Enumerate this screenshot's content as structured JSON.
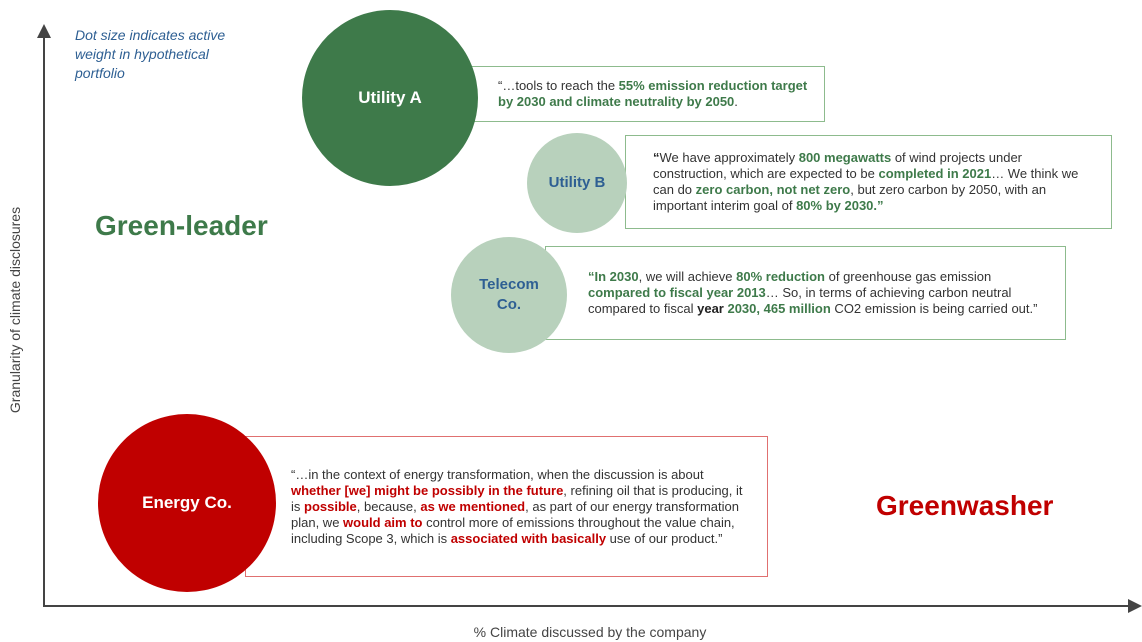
{
  "note": "Dot size indicates active weight in hypothetical portfolio",
  "y_axis_label": "Granularity of climate disclosures",
  "x_axis_label": "% Climate discussed by the company",
  "quadrants": [
    {
      "label": "Green-leader",
      "tone": "green"
    },
    {
      "label": "Greenwasher",
      "tone": "red"
    }
  ],
  "companies": [
    {
      "name": "Utility A",
      "tone": "dark-green",
      "quote": [
        {
          "text": "“…tools to reach the ",
          "style": "plain"
        },
        {
          "text": "55% emission reduction target by 2030 and climate neutrality by 2050",
          "style": "green"
        },
        {
          "text": ".",
          "style": "plain"
        }
      ]
    },
    {
      "name": "Utility B",
      "tone": "light-green",
      "quote": [
        {
          "text": "“",
          "style": "dark"
        },
        {
          "text": "We have approximately ",
          "style": "plain"
        },
        {
          "text": "800 megawatts",
          "style": "green"
        },
        {
          "text": " of wind projects under construction, which are expected to be ",
          "style": "plain"
        },
        {
          "text": "completed in 2021",
          "style": "green"
        },
        {
          "text": "… We think we can do ",
          "style": "plain"
        },
        {
          "text": "zero carbon, not net zero",
          "style": "green"
        },
        {
          "text": ", but zero carbon by 2050, with an important interim goal of ",
          "style": "plain"
        },
        {
          "text": "80% by 2030.”",
          "style": "green"
        }
      ]
    },
    {
      "name": "Telecom Co.",
      "tone": "light-green",
      "quote": [
        {
          "text": "“In 2030",
          "style": "green"
        },
        {
          "text": ", we will achieve ",
          "style": "plain"
        },
        {
          "text": "80% reduction",
          "style": "green"
        },
        {
          "text": " of greenhouse gas emission ",
          "style": "plain"
        },
        {
          "text": "compared to fiscal year 2013",
          "style": "green"
        },
        {
          "text": "… So, in terms of achieving carbon neutral compared to fiscal ",
          "style": "plain"
        },
        {
          "text": "year",
          "style": "dark"
        },
        {
          "text": " 2030, 465 million",
          "style": "green"
        },
        {
          "text": " CO2 emission is being carried out.”",
          "style": "plain"
        }
      ]
    },
    {
      "name": "Energy Co.",
      "tone": "red",
      "quote": [
        {
          "text": "“…in the context of energy transformation, when the discussion is about ",
          "style": "plain"
        },
        {
          "text": "whether [we] might be possibly in the future",
          "style": "red"
        },
        {
          "text": ", refining oil that is producing, it is ",
          "style": "plain"
        },
        {
          "text": "possible",
          "style": "red"
        },
        {
          "text": ", because, ",
          "style": "plain"
        },
        {
          "text": "as we mentioned",
          "style": "red"
        },
        {
          "text": ", as part of our energy transformation plan, we ",
          "style": "plain"
        },
        {
          "text": "would aim to",
          "style": "red"
        },
        {
          "text": " control more of emissions throughout the value chain, including Scope 3, which is ",
          "style": "plain"
        },
        {
          "text": "associated with basically",
          "style": "red"
        },
        {
          "text": " use of our product.”",
          "style": "plain"
        }
      ]
    }
  ]
}
